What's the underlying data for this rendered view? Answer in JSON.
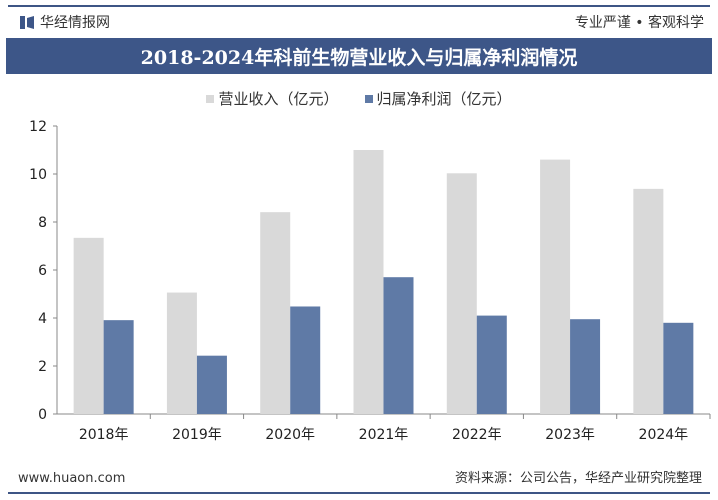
{
  "header": {
    "brand": "华经情报网",
    "slogan": "专业严谨 • 客观科学"
  },
  "footer": {
    "website": "www.huaon.com",
    "source": "资料来源：公司公告，华经产业研究院整理"
  },
  "colors": {
    "revenue": "#d9d9d9",
    "profit": "#5f7aa6",
    "title_bar": "#3d5688"
  },
  "chart_data": {
    "type": "bar",
    "title": "2018-2024年科前生物营业收入与归属净利润情况",
    "categories": [
      "2018年",
      "2019年",
      "2020年",
      "2021年",
      "2022年",
      "2023年",
      "2024年"
    ],
    "series": [
      {
        "name": "营业收入（亿元）",
        "values": [
          7.34,
          5.06,
          8.41,
          11.0,
          10.03,
          10.6,
          9.38
        ]
      },
      {
        "name": "归属净利润（亿元）",
        "values": [
          3.91,
          2.43,
          4.48,
          5.7,
          4.1,
          3.95,
          3.8
        ]
      }
    ],
    "ylim": [
      0,
      12
    ],
    "yticks": [
      0,
      2,
      4,
      6,
      8,
      10,
      12
    ],
    "legend": "top",
    "grid": false
  }
}
